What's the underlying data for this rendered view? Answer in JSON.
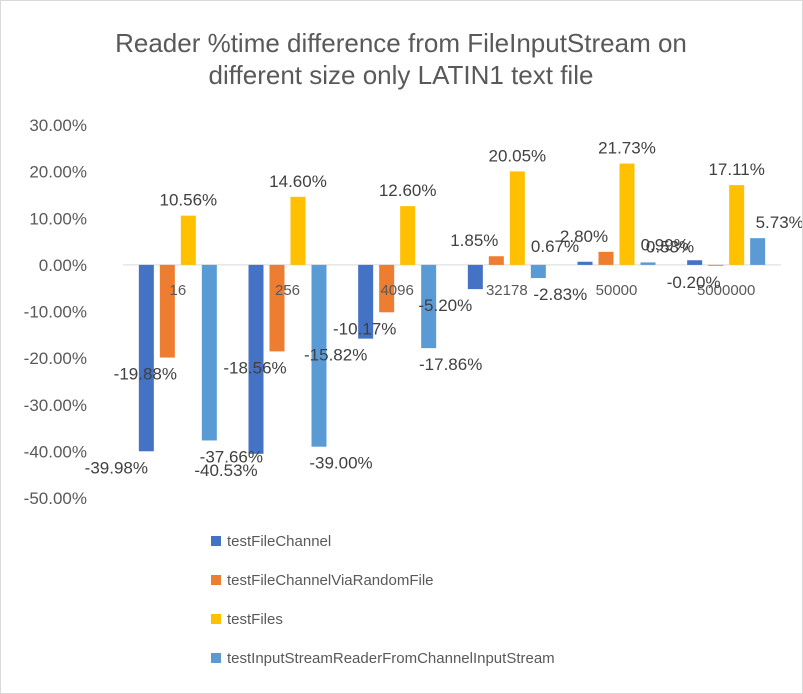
{
  "chart_data": {
    "type": "bar",
    "title": "Reader %time difference from FileInputStream on different size only LATIN1 text file",
    "title_lines": [
      "Reader %time difference from FileInputStream on",
      "different size only LATIN1 text file"
    ],
    "xlabel": "",
    "ylabel": "",
    "categories": [
      "16",
      "256",
      "4096",
      "32178",
      "50000",
      "5000000"
    ],
    "ylim": [
      -50,
      30
    ],
    "y_step": 10,
    "y_tick_labels": [
      "30.00%",
      "20.00%",
      "10.00%",
      "0.00%",
      "-10.00%",
      "-20.00%",
      "-30.00%",
      "-40.00%",
      "-50.00%"
    ],
    "grid": false,
    "legend_position": "bottom",
    "series": [
      {
        "name": "testFileChannel",
        "color": "#4472c4",
        "values": [
          -39.98,
          -40.53,
          -15.82,
          -5.2,
          0.67,
          0.99
        ],
        "labels": [
          "-39.98%",
          "-40.53%",
          "-15.82%",
          "-5.20%",
          "0.67%",
          "0.99%"
        ]
      },
      {
        "name": "testFileChannelViaRandomFile",
        "color": "#ed7d31",
        "values": [
          -19.88,
          -18.56,
          -10.17,
          1.85,
          2.8,
          -0.2
        ],
        "labels": [
          "-19.88%",
          "-18.56%",
          "-10.17%",
          "1.85%",
          "2.80%",
          "-0.20%"
        ]
      },
      {
        "name": "testFiles",
        "color": "#ffc000",
        "values": [
          10.56,
          14.6,
          12.6,
          20.05,
          21.73,
          17.11
        ],
        "labels": [
          "10.56%",
          "14.60%",
          "12.60%",
          "20.05%",
          "21.73%",
          "17.11%"
        ]
      },
      {
        "name": "testInputStreamReaderFromChannelInputStream",
        "color": "#5b9bd5",
        "values": [
          -37.66,
          -39.0,
          -17.86,
          -2.83,
          0.53,
          5.73
        ],
        "labels": [
          "-37.66%",
          "-39.00%",
          "-17.86%",
          "-2.83%",
          "0.53%",
          "5.73%"
        ]
      }
    ]
  }
}
